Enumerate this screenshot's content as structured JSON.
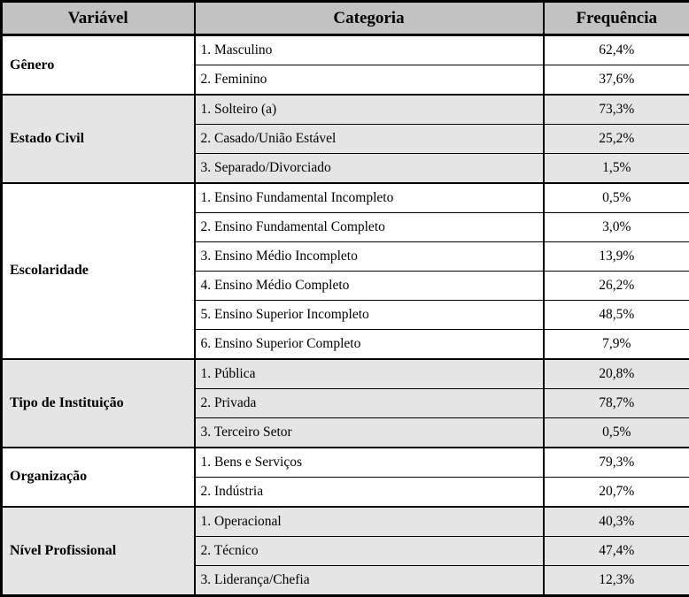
{
  "colors": {
    "header_bg": "#c2c2c2",
    "shaded_group_bg": "#e5e5e5",
    "white_group_bg": "#ffffff",
    "border": "#000000",
    "text": "#000000"
  },
  "chart_data": {
    "type": "table",
    "columns": [
      "Variável",
      "Categoria",
      "Frequência"
    ],
    "value_format": "percent, comma decimal separator",
    "groups": [
      {
        "variable": "Gênero",
        "shaded": false,
        "rows": [
          {
            "category": "1. Masculino",
            "frequency": "62,4%",
            "frequency_pct": 62.4
          },
          {
            "category": "2. Feminino",
            "frequency": "37,6%",
            "frequency_pct": 37.6
          }
        ]
      },
      {
        "variable": "Estado Civil",
        "shaded": true,
        "rows": [
          {
            "category": "1. Solteiro (a)",
            "frequency": "73,3%",
            "frequency_pct": 73.3
          },
          {
            "category": "2. Casado/União Estável",
            "frequency": "25,2%",
            "frequency_pct": 25.2
          },
          {
            "category": "3. Separado/Divorciado",
            "frequency": "1,5%",
            "frequency_pct": 1.5
          }
        ]
      },
      {
        "variable": "Escolaridade",
        "shaded": false,
        "rows": [
          {
            "category": "1. Ensino Fundamental Incompleto",
            "frequency": "0,5%",
            "frequency_pct": 0.5
          },
          {
            "category": "2. Ensino Fundamental Completo",
            "frequency": "3,0%",
            "frequency_pct": 3.0
          },
          {
            "category": "3. Ensino Médio Incompleto",
            "frequency": "13,9%",
            "frequency_pct": 13.9
          },
          {
            "category": "4. Ensino Médio Completo",
            "frequency": "26,2%",
            "frequency_pct": 26.2
          },
          {
            "category": "5. Ensino Superior Incompleto",
            "frequency": "48,5%",
            "frequency_pct": 48.5
          },
          {
            "category": "6. Ensino Superior Completo",
            "frequency": "7,9%",
            "frequency_pct": 7.9
          }
        ]
      },
      {
        "variable": "Tipo de Instituição",
        "shaded": true,
        "rows": [
          {
            "category": "1. Pública",
            "frequency": "20,8%",
            "frequency_pct": 20.8
          },
          {
            "category": "2. Privada",
            "frequency": "78,7%",
            "frequency_pct": 78.7
          },
          {
            "category": "3. Terceiro Setor",
            "frequency": "0,5%",
            "frequency_pct": 0.5
          }
        ]
      },
      {
        "variable": "Organização",
        "shaded": false,
        "rows": [
          {
            "category": "1. Bens e Serviços",
            "frequency": "79,3%",
            "frequency_pct": 79.3
          },
          {
            "category": "2. Indústria",
            "frequency": "20,7%",
            "frequency_pct": 20.7
          }
        ]
      },
      {
        "variable": "Nível Profissional",
        "shaded": true,
        "rows": [
          {
            "category": "1. Operacional",
            "frequency": "40,3%",
            "frequency_pct": 40.3
          },
          {
            "category": "2. Técnico",
            "frequency": "47,4%",
            "frequency_pct": 47.4
          },
          {
            "category": "3. Liderança/Chefia",
            "frequency": "12,3%",
            "frequency_pct": 12.3
          }
        ]
      }
    ]
  }
}
